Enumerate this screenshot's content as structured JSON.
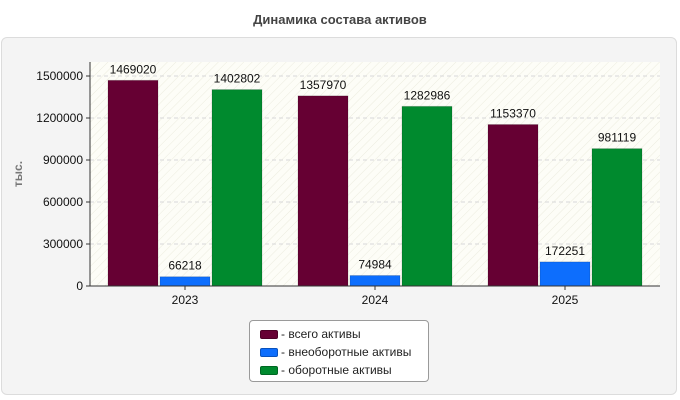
{
  "chart_data": {
    "type": "bar",
    "title": "Динамика состава активов",
    "ylabel": "тыс.",
    "xlabel": "",
    "categories": [
      "2023",
      "2024",
      "2025"
    ],
    "ylim": [
      0,
      1600000
    ],
    "yticks": [
      0,
      300000,
      600000,
      900000,
      1200000,
      1500000
    ],
    "grid": true,
    "legend_position": "bottom",
    "series": [
      {
        "name": "всего активы",
        "color": "#660033",
        "values": [
          1469020,
          1357970,
          1153370
        ]
      },
      {
        "name": "внеоборотные активы",
        "color": "#0d6efd",
        "values": [
          66218,
          74984,
          172251
        ]
      },
      {
        "name": "оборотные активы",
        "color": "#008a2e",
        "values": [
          1402802,
          1282986,
          981119
        ]
      }
    ]
  },
  "legend": {
    "items": [
      {
        "label": "- всего активы",
        "color": "#660033"
      },
      {
        "label": "- внеоборотные активы",
        "color": "#0d6efd"
      },
      {
        "label": "- оборотные активы",
        "color": "#008a2e"
      }
    ]
  }
}
